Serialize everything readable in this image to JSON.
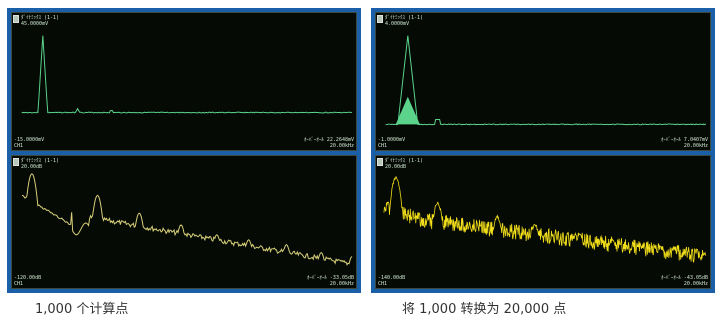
{
  "colors": {
    "frame": "#1b5fa8",
    "screen_bg": "#050a05",
    "waveform_top": "#5bd38a",
    "waveform_bottom_left": "#d8d07a",
    "waveform_bottom_right": "#f2de1a"
  },
  "left": {
    "caption": "1,000 个计算点",
    "top_pane": {
      "channel_title": "ﾀﾞｲﾅﾐｯｸｽ (1-1)",
      "top_value": "45.0000mV",
      "bottom_value": "-15.0000mV",
      "bottom_left_unit": "CH1",
      "right_readout": "ｵｰﾊﾞｰｵｰﾙ 22.2648mV",
      "x_max": "20.00kHz"
    },
    "bottom_pane": {
      "channel_title": "ﾀﾞｲﾅﾐｯｸｽ (1-1)",
      "top_value": "20.00dB",
      "bottom_value": "-120.00dB",
      "bottom_left_unit": "CH1",
      "right_readout": "ｵｰﾊﾞｰｵｰﾙ -33.05dB",
      "x_max": "20.00kHz"
    }
  },
  "right": {
    "caption": "将 1,000 转换为 20,000 点",
    "top_pane": {
      "channel_title": "ﾀﾞｲﾅﾐｯｸｽ (1-1)",
      "top_value": "4.0000mV",
      "bottom_value": "-1.0000mV",
      "bottom_left_unit": "CH1",
      "right_readout": "ｵｰﾊﾞｰｵｰﾙ 7.0407mV",
      "x_max": "20.00kHz"
    },
    "bottom_pane": {
      "channel_title": "ﾀﾞｲﾅﾐｯｸｽ (1-1)",
      "top_value": "20.00dB",
      "bottom_value": "-140.00dB",
      "bottom_left_unit": "CH1",
      "right_readout": "ｵｰﾊﾞｰｵｰﾙ -43.05dB",
      "x_max": "20.00kHz"
    }
  }
}
